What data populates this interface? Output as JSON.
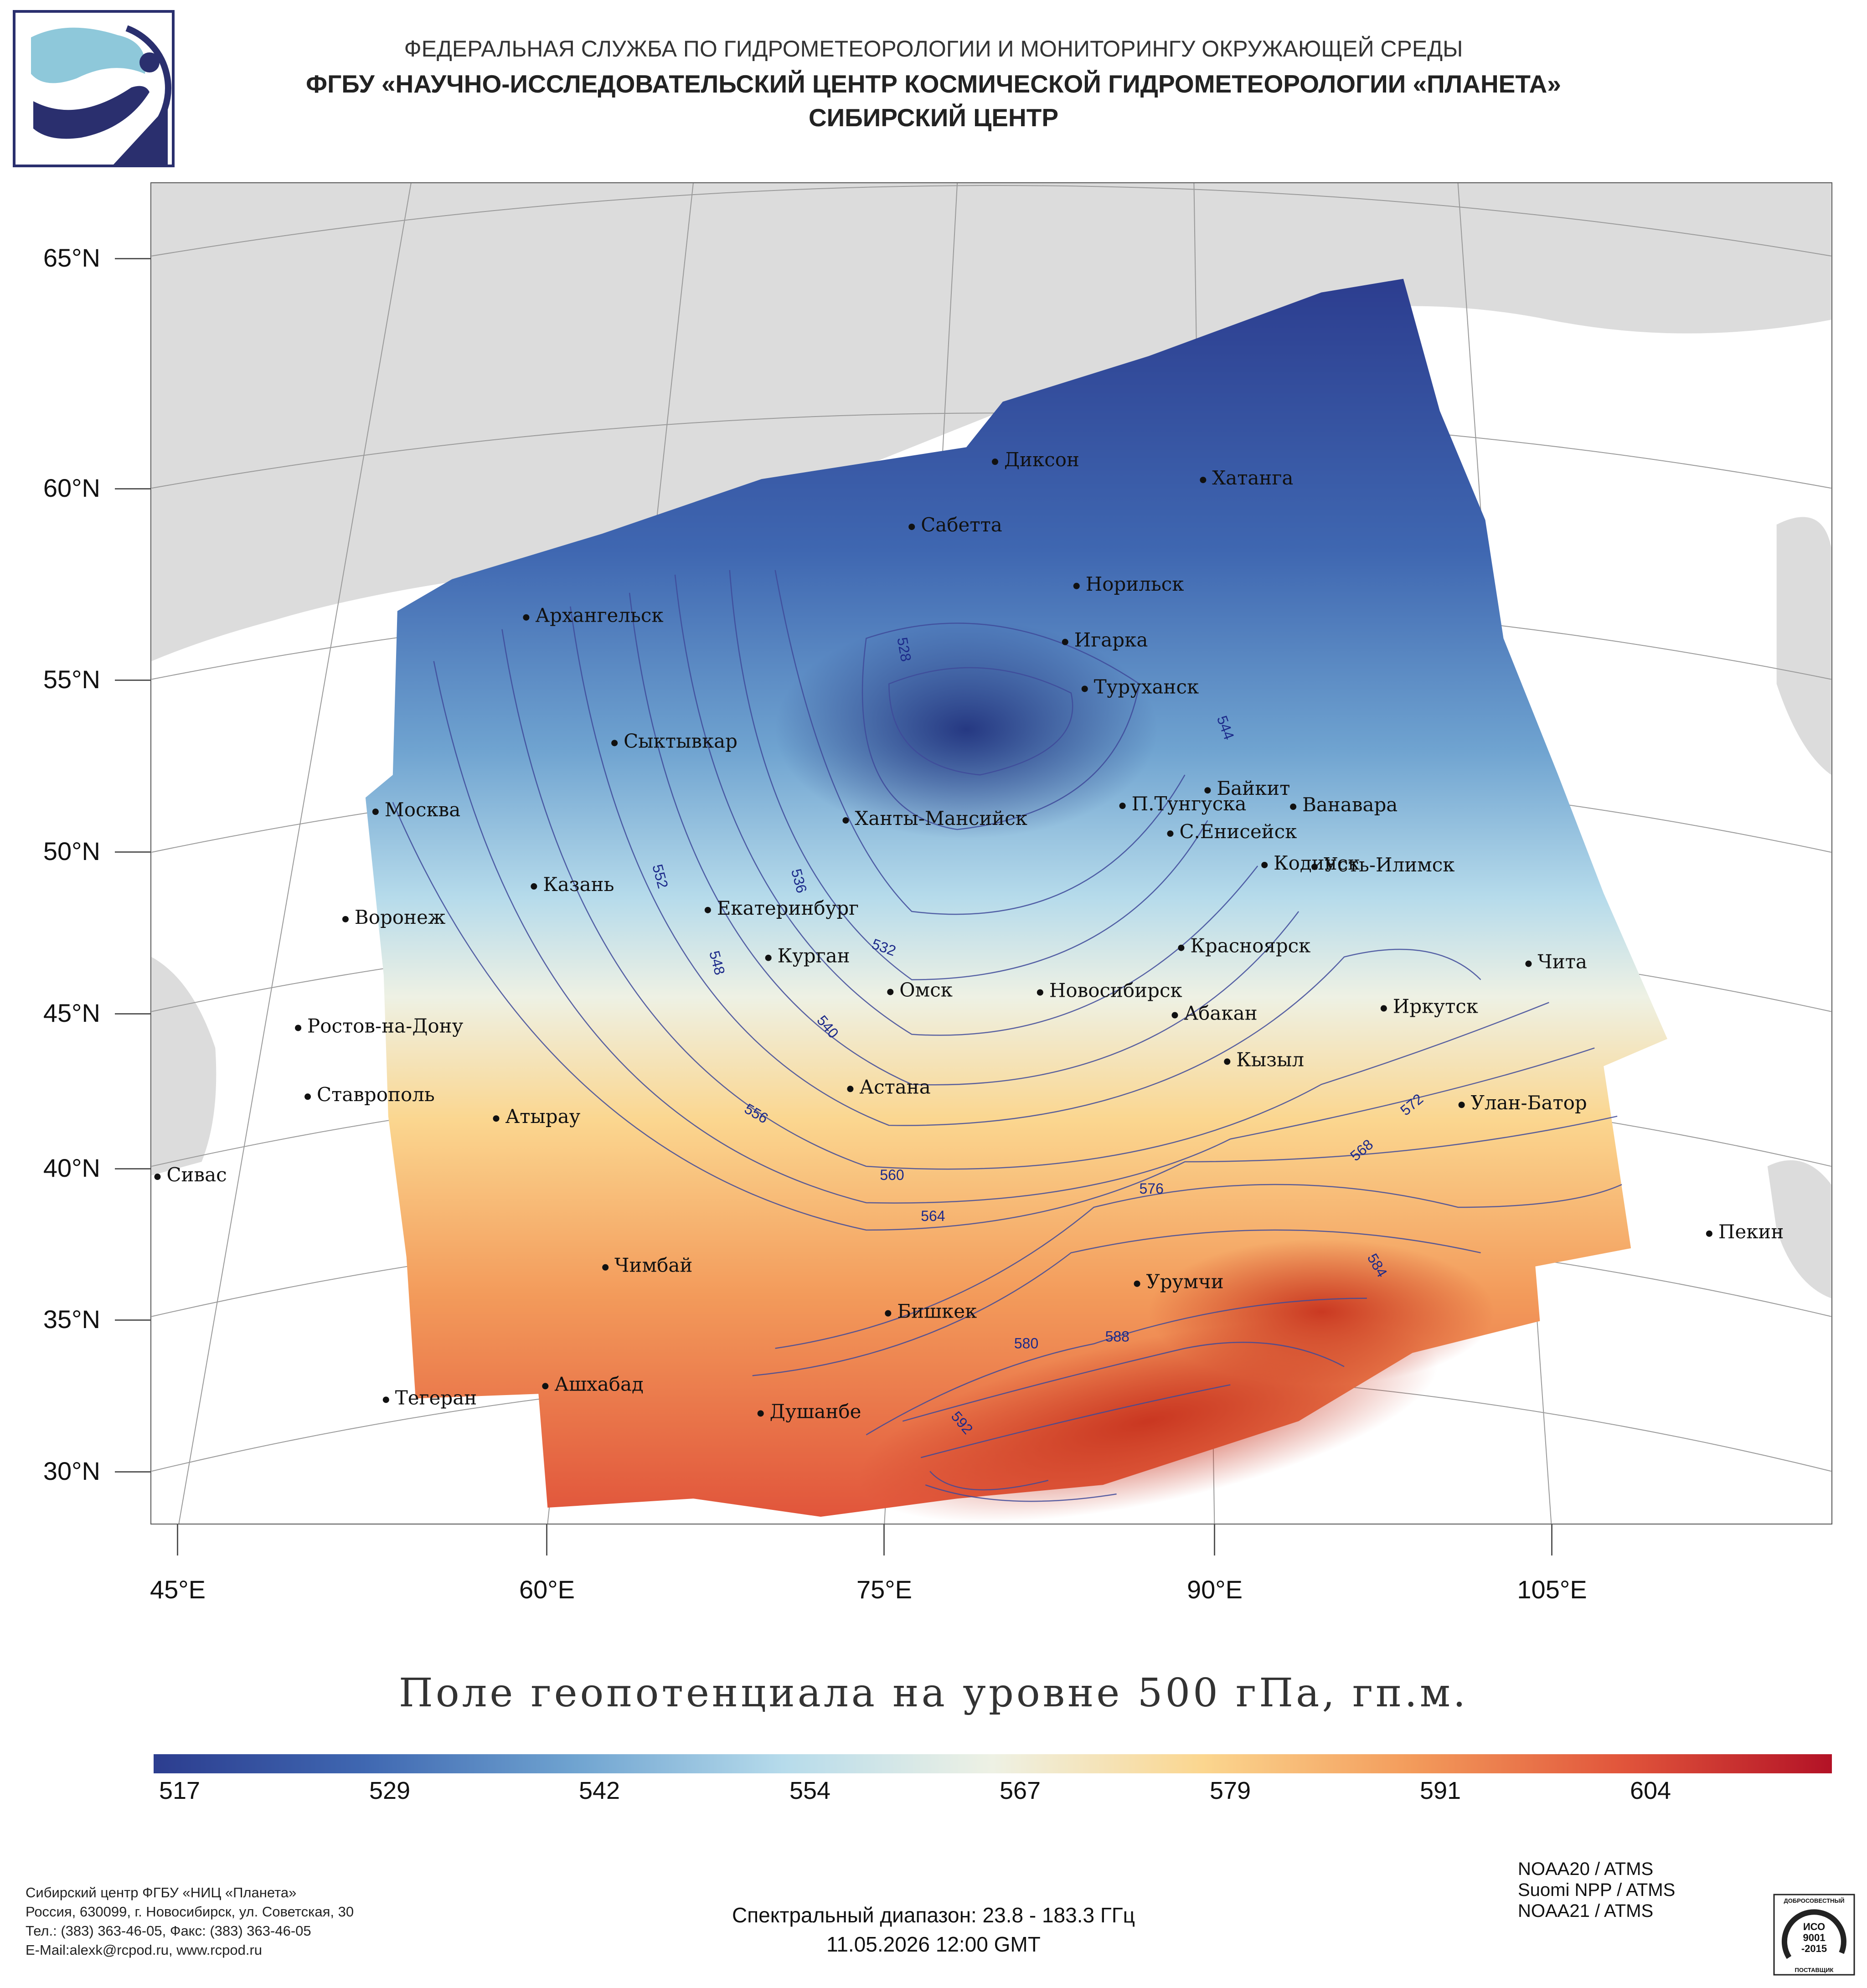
{
  "header": {
    "line1": "ФЕДЕРАЛЬНАЯ СЛУЖБА ПО ГИДРОМЕТЕОРОЛОГИИ И МОНИТОРИНГУ ОКРУЖАЮЩЕЙ СРЕДЫ",
    "line2": "ФГБУ «НАУЧНО-ИССЛЕДОВАТЕЛЬСКИЙ ЦЕНТР КОСМИЧЕСКОЙ ГИДРОМЕТЕОРОЛОГИИ «ПЛАНЕТА»",
    "line3": "СИБИРСКИЙ ЦЕНТР"
  },
  "map": {
    "title": "Поле геопотенциала на уровне 500 гПа, гп.м.",
    "lat_labels": [
      "65°N",
      "60°N",
      "55°N",
      "50°N",
      "45°N",
      "40°N",
      "35°N",
      "30°N"
    ],
    "lon_labels": [
      "45°E",
      "60°E",
      "75°E",
      "90°E",
      "105°E"
    ],
    "cities": [
      "Диксон",
      "Хатанга",
      "Сабетта",
      "Норильск",
      "Архангельск",
      "Игарка",
      "Туруханск",
      "Сыктывкар",
      "Байкит",
      "П.Тунгуска",
      "Ванавара",
      "Москва",
      "Ханты-Мансийск",
      "С.Енисейск",
      "Кодинск",
      "Усть-Илимск",
      "Казань",
      "Екатеринбург",
      "Воронеж",
      "Красноярск",
      "Курган",
      "Чита",
      "Омск",
      "Новосибирск",
      "Иркутск",
      "Абакан",
      "Ростов-на-Дону",
      "Кызыл",
      "Астана",
      "Ставрополь",
      "Улан-Батор",
      "Атырау",
      "Сивас",
      "Пекин",
      "Чимбай",
      "Урумчи",
      "Бишкек",
      "Ашхабад",
      "Тегеран",
      "Душанбе"
    ],
    "contour_labels": [
      "528",
      "532",
      "536",
      "540",
      "544",
      "548",
      "552",
      "556",
      "560",
      "564",
      "568",
      "572",
      "576",
      "580",
      "584",
      "588",
      "592"
    ]
  },
  "colorbar": {
    "labels": [
      "517",
      "529",
      "542",
      "554",
      "567",
      "579",
      "591",
      "604"
    ],
    "colors": [
      "#2c3d8f",
      "#3f67b1",
      "#6fa3d0",
      "#b6dbeb",
      "#eef1e4",
      "#fbd68f",
      "#f39b5b",
      "#e1553b",
      "#b31226"
    ]
  },
  "footer": {
    "org_lines": [
      "Сибирский центр ФГБУ «НИЦ «Планета»",
      "Россия, 630099, г. Новосибирск, ул. Советская, 30",
      "Тел.: (383) 363-46-05, Факс: (383) 363-46-05",
      "E-Mail:alexk@rcpod.ru, www.rcpod.ru"
    ],
    "spectral": "Спектральный диапазон: 23.8 - 183.3 ГГц",
    "datetime": "11.05.2026 12:00 GMT",
    "satellites": [
      "NOAA20 / ATMS",
      "Suomi NPP / ATMS",
      "NOAA21 / ATMS"
    ],
    "iso": {
      "top": "ДОБРОСОВЕСТНЫЙ",
      "mark": "ИСО",
      "code": "9001",
      "year": "-2015",
      "bottom": "ПОСТАВЩИК"
    }
  }
}
